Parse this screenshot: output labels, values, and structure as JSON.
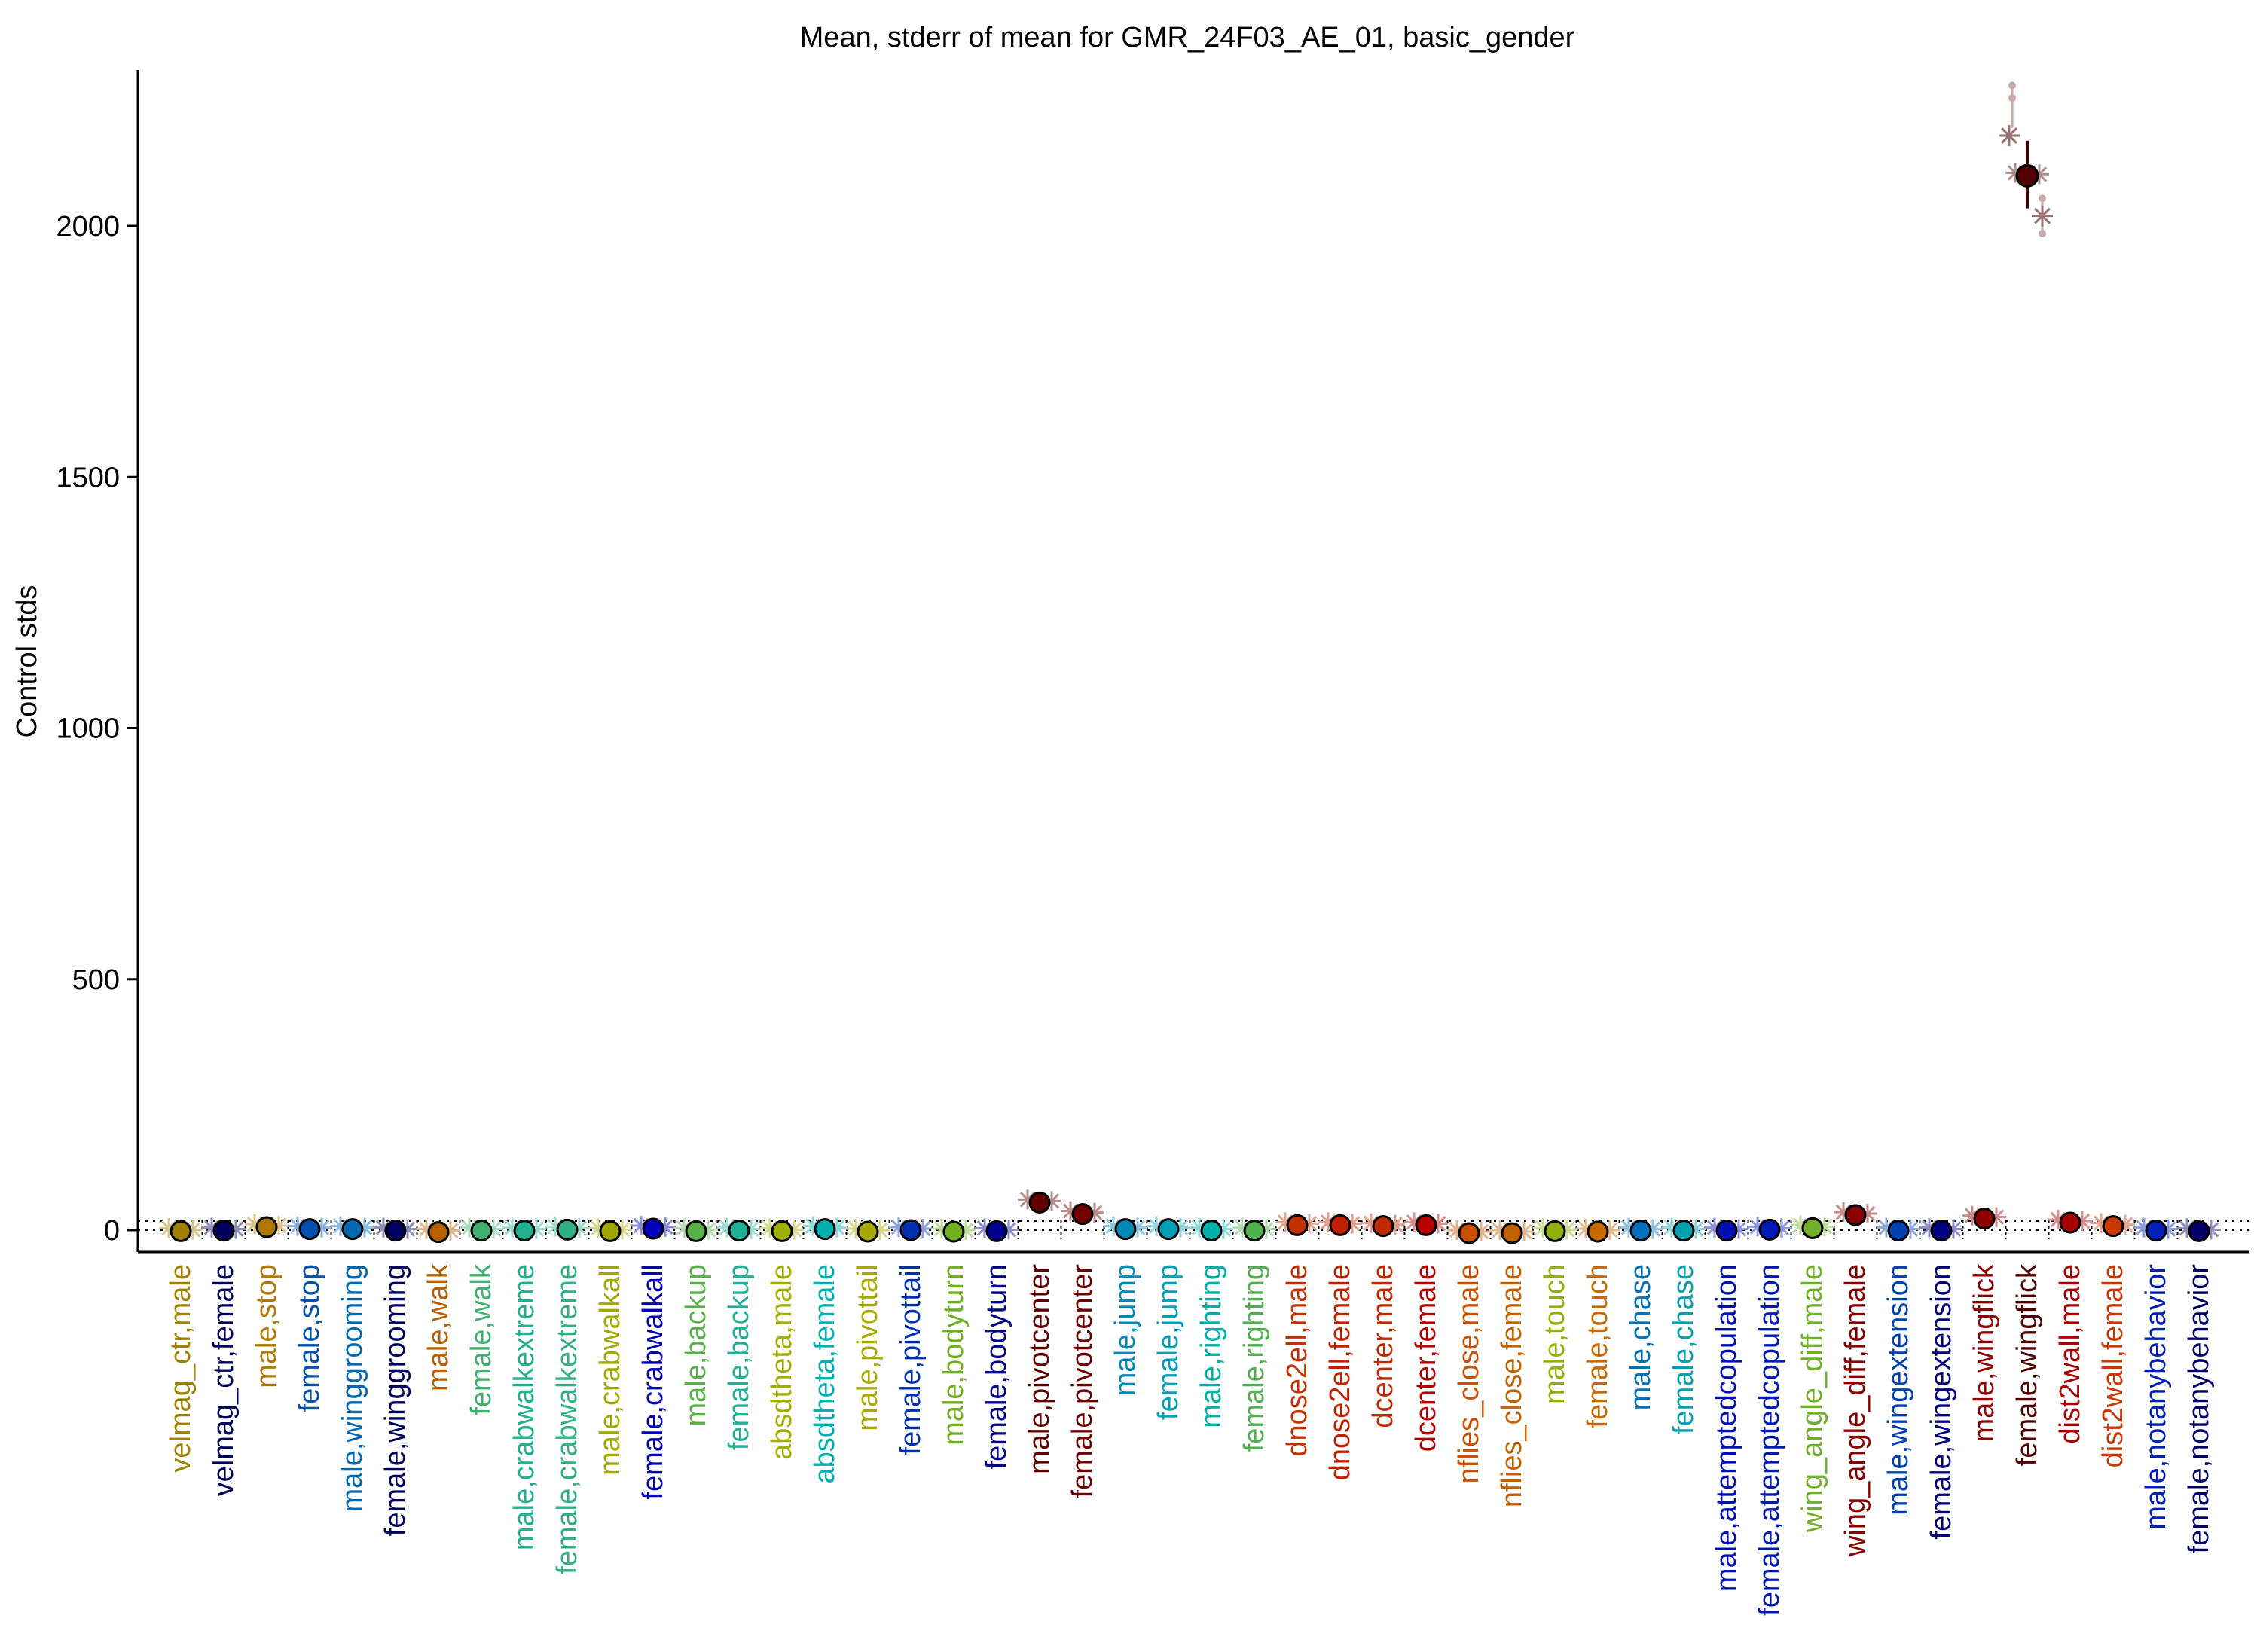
{
  "chart_data": {
    "type": "scatter",
    "title": "Mean, stderr of mean for GMR_24F03_AE_01, basic_gender",
    "ylabel": "Control stds",
    "xlabel": "",
    "ylim": [
      -30,
      2300
    ],
    "yticks": [
      0,
      500,
      1000,
      1500,
      2000
    ],
    "ytick_labels": [
      "0",
      "500",
      "1000",
      "1500",
      "2000"
    ],
    "zero_line": "dotted",
    "grid": false,
    "legend": "none",
    "series": [
      {
        "label": "velmag_ctr,male",
        "mean": -2,
        "color": "#a08000"
      },
      {
        "label": "velmag_ctr,female",
        "mean": -1,
        "color": "#00005a"
      },
      {
        "label": "male,stop",
        "mean": 6,
        "color": "#b07800"
      },
      {
        "label": "female,stop",
        "mean": 2,
        "color": "#0050b0"
      },
      {
        "label": "male,winggrooming",
        "mean": 2,
        "color": "#0068b0"
      },
      {
        "label": "female,winggrooming",
        "mean": -1,
        "color": "#000060"
      },
      {
        "label": "male,walk",
        "mean": -4,
        "color": "#b86000"
      },
      {
        "label": "female,walk",
        "mean": -1,
        "color": "#40b070"
      },
      {
        "label": "male,crabwalkextreme",
        "mean": -1,
        "color": "#20b090"
      },
      {
        "label": "female,crabwalkextreme",
        "mean": 1,
        "color": "#30b080"
      },
      {
        "label": "male,crabwalkall",
        "mean": -2,
        "color": "#a0a800"
      },
      {
        "label": "female,crabwalkall",
        "mean": 3,
        "color": "#0000b8"
      },
      {
        "label": "male,backup",
        "mean": -2,
        "color": "#58b048"
      },
      {
        "label": "female,backup",
        "mean": -1,
        "color": "#20b098"
      },
      {
        "label": "absdtheta,male",
        "mean": -2,
        "color": "#a0b000"
      },
      {
        "label": "absdtheta,female",
        "mean": 2,
        "color": "#00b0b0"
      },
      {
        "label": "male,pivottail",
        "mean": -3,
        "color": "#a8a800"
      },
      {
        "label": "female,pivottail",
        "mean": 0,
        "color": "#0030b0"
      },
      {
        "label": "male,bodyturn",
        "mean": -3,
        "color": "#70b020"
      },
      {
        "label": "female,bodyturn",
        "mean": -2,
        "color": "#000090"
      },
      {
        "label": "male,pivotcenter",
        "mean": 55,
        "color": "#600000"
      },
      {
        "label": "female,pivotcenter",
        "mean": 32,
        "color": "#700000"
      },
      {
        "label": "male,jump",
        "mean": 2,
        "color": "#0088b8"
      },
      {
        "label": "female,jump",
        "mean": 2,
        "color": "#00a0b8"
      },
      {
        "label": "male,righting",
        "mean": -1,
        "color": "#00b0a8"
      },
      {
        "label": "female,righting",
        "mean": -1,
        "color": "#50b050"
      },
      {
        "label": "dnose2ell,male",
        "mean": 10,
        "color": "#c03000"
      },
      {
        "label": "dnose2ell,female",
        "mean": 10,
        "color": "#c02000"
      },
      {
        "label": "dcenter,male",
        "mean": 8,
        "color": "#c02800"
      },
      {
        "label": "dcenter,female",
        "mean": 10,
        "color": "#b80000"
      },
      {
        "label": "nflies_close,male",
        "mean": -6,
        "color": "#c85000"
      },
      {
        "label": "nflies_close,female",
        "mean": -6,
        "color": "#c06000"
      },
      {
        "label": "male,touch",
        "mean": -2,
        "color": "#90b010"
      },
      {
        "label": "female,touch",
        "mean": -3,
        "color": "#c86800"
      },
      {
        "label": "male,chase",
        "mean": -1,
        "color": "#0070b8"
      },
      {
        "label": "female,chase",
        "mean": -1,
        "color": "#00a0b0"
      },
      {
        "label": "male,attemptedcopulation",
        "mean": -1,
        "color": "#0010b0"
      },
      {
        "label": "female,attemptedcopulation",
        "mean": 1,
        "color": "#0018b8"
      },
      {
        "label": "wing_angle_diff,male",
        "mean": 4,
        "color": "#70b028"
      },
      {
        "label": "wing_angle_diff,female",
        "mean": 30,
        "color": "#880000"
      },
      {
        "label": "male,wingextension",
        "mean": -1,
        "color": "#0040b0"
      },
      {
        "label": "female,wingextension",
        "mean": -1,
        "color": "#000080"
      },
      {
        "label": "male,wingflick",
        "mean": 23,
        "color": "#900000"
      },
      {
        "label": "female,wingflick",
        "mean": 2100,
        "color": "#500000"
      },
      {
        "label": "dist2wall,male",
        "mean": 15,
        "color": "#a80000"
      },
      {
        "label": "dist2wall,female",
        "mean": 8,
        "color": "#c83800"
      },
      {
        "label": "male,notanybehavior",
        "mean": -1,
        "color": "#0020b8"
      },
      {
        "label": "female,notanybehavior",
        "mean": -2,
        "color": "#000068"
      }
    ],
    "wingflick_female_detail": {
      "mean": 2100,
      "stderr_low": 2035,
      "stderr_high": 2170,
      "samples": [
        2180,
        2020
      ],
      "points": [
        2280,
        2255,
        2055,
        1985
      ]
    }
  }
}
